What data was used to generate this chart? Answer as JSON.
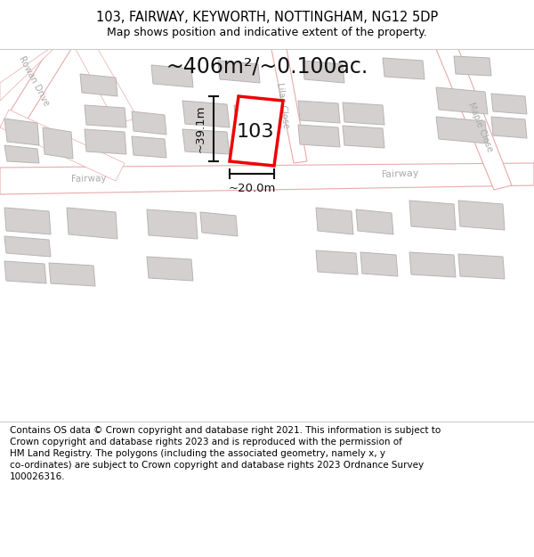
{
  "title_line1": "103, FAIRWAY, KEYWORTH, NOTTINGHAM, NG12 5DP",
  "title_line2": "Map shows position and indicative extent of the property.",
  "area_text": "~406m²/~0.100ac.",
  "dim_height": "~39.1m",
  "dim_width": "~20.0m",
  "property_number": "103",
  "footer_text": "Contains OS data © Crown copyright and database right 2021. This information is subject to Crown copyright and database rights 2023 and is reproduced with the permission of HM Land Registry. The polygons (including the associated geometry, namely x, y co-ordinates) are subject to Crown copyright and database rights 2023 Ordnance Survey 100026316.",
  "map_bg": "#f7f3f3",
  "road_fill": "#ffffff",
  "road_edge": "#e8aaaa",
  "building_fill": "#d4d0d0",
  "building_edge": "#b8b4b4",
  "property_color": "#ee0000",
  "dim_color": "#111111",
  "text_color": "#111111",
  "road_label_color": "#aaaaaa",
  "title_fontsize": 10.5,
  "subtitle_fontsize": 9,
  "area_fontsize": 17,
  "footer_fontsize": 7.5
}
